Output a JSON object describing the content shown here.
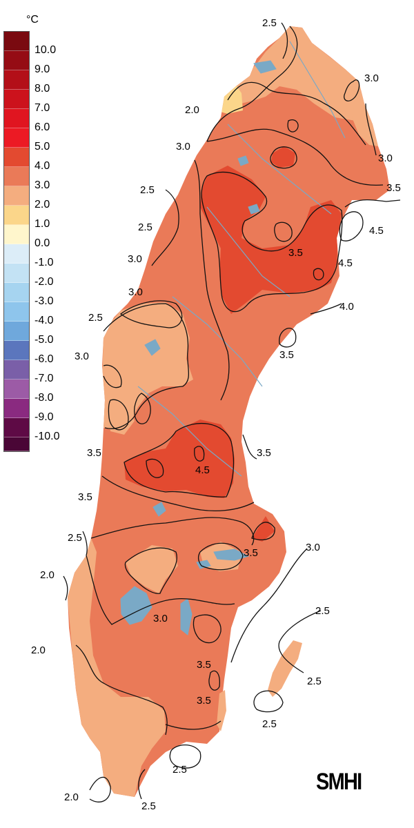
{
  "legend": {
    "unit": "°C",
    "steps": [
      {
        "label": "10.0",
        "color": "#7a0a10"
      },
      {
        "label": "9.0",
        "color": "#950c14"
      },
      {
        "label": "8.0",
        "color": "#b30f18"
      },
      {
        "label": "7.0",
        "color": "#cc121c"
      },
      {
        "label": "6.0",
        "color": "#e01520"
      },
      {
        "label": "5.0",
        "color": "#ec1a24"
      },
      {
        "label": "4.0",
        "color": "#e34a30"
      },
      {
        "label": "3.0",
        "color": "#ea7a58"
      },
      {
        "label": "2.0",
        "color": "#f4ad7f"
      },
      {
        "label": "1.0",
        "color": "#fbd68a"
      },
      {
        "label": "0.0",
        "color": "#fff6cc"
      },
      {
        "label": "-1.0",
        "color": "#dcedf8"
      },
      {
        "label": "-2.0",
        "color": "#c3e2f4"
      },
      {
        "label": "-3.0",
        "color": "#a6d4f0"
      },
      {
        "label": "-4.0",
        "color": "#8ec5ec"
      },
      {
        "label": "-5.0",
        "color": "#6fa8dc"
      },
      {
        "label": "-6.0",
        "color": "#5b76bd"
      },
      {
        "label": "-7.0",
        "color": "#7a5fa8"
      },
      {
        "label": "-8.0",
        "color": "#9c5ba6"
      },
      {
        "label": "-9.0",
        "color": "#8a2a80"
      },
      {
        "label": "-10.0",
        "color": "#5e0a45"
      }
    ],
    "bottom_color": "#4a0636"
  },
  "map": {
    "colors": {
      "land_base": "#ea7a58",
      "band_2_3": "#f4ad7f",
      "band_1_2": "#fbd68a",
      "band_4_5": "#e34a30",
      "water": "#7aa9c6",
      "isoline": "#111111"
    },
    "isoline_labels": [
      "2.5",
      "3.0",
      "2.0",
      "3.0",
      "3.0",
      "3.5",
      "2.5",
      "2.5",
      "3.0",
      "4.5",
      "3.5",
      "4.5",
      "3.0",
      "4.0",
      "2.5",
      "3.5",
      "3.0",
      "3.5",
      "3.5",
      "4.5",
      "3.5",
      "2.5",
      "3.5",
      "3.0",
      "2.0",
      "3.0",
      "2.0",
      "2.5",
      "3.5",
      "3.5",
      "2.5",
      "2.5",
      "2.5",
      "2.0",
      "2.5"
    ]
  },
  "logo": "SMHI"
}
